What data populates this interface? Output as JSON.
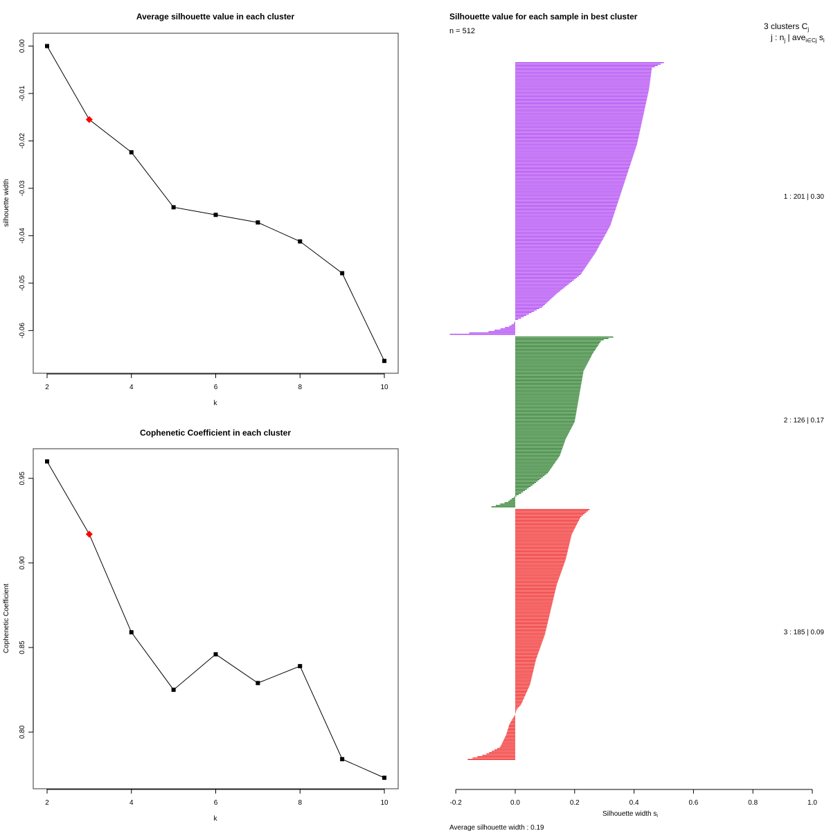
{
  "chart_data": [
    {
      "type": "line",
      "title": "Average silhouette value in each cluster",
      "xlabel": "k",
      "ylabel": "silhouette width",
      "x": [
        2,
        3,
        4,
        5,
        6,
        7,
        8,
        9,
        10
      ],
      "values": [
        0.0,
        -0.0155,
        -0.0224,
        -0.034,
        -0.0356,
        -0.0372,
        -0.0412,
        -0.0479,
        -0.0664
      ],
      "highlight": {
        "k": 3,
        "value": -0.0155,
        "color": "#ff0000"
      },
      "xticks": [
        "2",
        "4",
        "6",
        "8",
        "10"
      ],
      "yticks": [
        "0.00",
        "-0.01",
        "-0.02",
        "-0.03",
        "-0.04",
        "-0.05",
        "-0.06"
      ],
      "xlim": [
        1.67,
        10.33
      ],
      "ylim": [
        -0.069,
        0.0027
      ],
      "grid": false
    },
    {
      "type": "line",
      "title": "Cophenetic Coefficient in each cluster",
      "xlabel": "k",
      "ylabel": "Cophenetic Coefficient",
      "x": [
        2,
        3,
        4,
        5,
        6,
        7,
        8,
        9,
        10
      ],
      "values": [
        0.96,
        0.917,
        0.859,
        0.825,
        0.846,
        0.829,
        0.839,
        0.784,
        0.773
      ],
      "highlight": {
        "k": 3,
        "value": 0.917,
        "color": "#ff0000"
      },
      "xticks": [
        "2",
        "4",
        "6",
        "8",
        "10"
      ],
      "yticks": [
        "0.80",
        "0.85",
        "0.90",
        "0.95"
      ],
      "xlim": [
        1.67,
        10.33
      ],
      "ylim": [
        0.7665,
        0.9675
      ],
      "grid": false
    },
    {
      "type": "bar",
      "orientation": "horizontal",
      "title": "Silhouette value for each sample in best cluster",
      "subtitle": "n = 512",
      "xlabel": "Silhouette width s",
      "xlabel_sub": "i",
      "xticks": [
        "-0.2",
        "0.0",
        "0.2",
        "0.4",
        "0.6",
        "0.8",
        "1.0"
      ],
      "xlim": [
        -0.2,
        1.0
      ],
      "n": 512,
      "legend_header": {
        "line1": "3 clusters C",
        "line1_sub": "j",
        "line2": "j : n",
        "line2_sub": "j",
        "line2_mid": " | ave",
        "line2_mid_sub": "i∈Cj",
        "line2_end": " s",
        "line2_end_sub": "i"
      },
      "clusters": [
        {
          "id": 1,
          "size": 201,
          "avg": "0.30",
          "label": "1 :  201  |  0.30",
          "color": "#a020f0",
          "profile": {
            "max": 0.5,
            "points": [
              [
                0,
                0.5
              ],
              [
                0.02,
                0.46
              ],
              [
                0.1,
                0.45
              ],
              [
                0.2,
                0.43
              ],
              [
                0.3,
                0.41
              ],
              [
                0.4,
                0.38
              ],
              [
                0.5,
                0.35
              ],
              [
                0.6,
                0.32
              ],
              [
                0.7,
                0.27
              ],
              [
                0.78,
                0.22
              ],
              [
                0.85,
                0.14
              ],
              [
                0.9,
                0.09
              ],
              [
                0.94,
                0.02
              ],
              [
                0.95,
                0.0
              ],
              [
                0.96,
                -0.005
              ],
              [
                0.97,
                -0.02
              ],
              [
                0.98,
                -0.05
              ],
              [
                0.99,
                -0.09
              ],
              [
                1.0,
                -0.22
              ]
            ]
          }
        },
        {
          "id": 2,
          "size": 126,
          "avg": "0.17",
          "label": "2 :  126  |  0.17",
          "color": "#006400",
          "profile": {
            "max": 0.33,
            "points": [
              [
                0,
                0.33
              ],
              [
                0.02,
                0.29
              ],
              [
                0.1,
                0.26
              ],
              [
                0.2,
                0.23
              ],
              [
                0.3,
                0.22
              ],
              [
                0.4,
                0.21
              ],
              [
                0.5,
                0.2
              ],
              [
                0.6,
                0.17
              ],
              [
                0.7,
                0.15
              ],
              [
                0.8,
                0.11
              ],
              [
                0.87,
                0.06
              ],
              [
                0.92,
                0.02
              ],
              [
                0.94,
                0.0
              ],
              [
                0.95,
                -0.01
              ],
              [
                0.97,
                -0.025
              ],
              [
                1.0,
                -0.08
              ]
            ]
          }
        },
        {
          "id": 3,
          "size": 185,
          "avg": "0.09",
          "label": "3 :  185  |  0.09",
          "color": "#ee0000",
          "profile": {
            "max": 0.25,
            "points": [
              [
                0,
                0.25
              ],
              [
                0.03,
                0.22
              ],
              [
                0.1,
                0.19
              ],
              [
                0.2,
                0.17
              ],
              [
                0.3,
                0.14
              ],
              [
                0.4,
                0.12
              ],
              [
                0.5,
                0.1
              ],
              [
                0.6,
                0.07
              ],
              [
                0.7,
                0.05
              ],
              [
                0.78,
                0.02
              ],
              [
                0.8,
                0.005
              ],
              [
                0.82,
                0.0
              ],
              [
                0.83,
                -0.005
              ],
              [
                0.86,
                -0.02
              ],
              [
                0.9,
                -0.03
              ],
              [
                0.95,
                -0.05
              ],
              [
                0.98,
                -0.1
              ],
              [
                1.0,
                -0.16
              ]
            ]
          }
        }
      ],
      "average_silhouette_width": "0.19",
      "footer": "Average silhouette width :  0.19"
    }
  ]
}
